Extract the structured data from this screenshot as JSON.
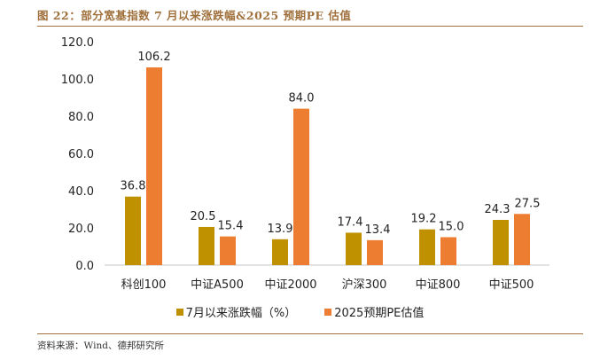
{
  "header": {
    "title": "图 22：部分宽基指数 7 月以来涨跌幅&2025 预期PE 估值"
  },
  "footer": {
    "source": "资料来源：Wind、德邦研究所"
  },
  "colors": {
    "series1": "#bf9000",
    "series2": "#ed7d31",
    "rule": "#a0703c",
    "axis": "#d9d9d9"
  },
  "chart_data": {
    "type": "bar",
    "title": "",
    "xlabel": "",
    "ylabel": "",
    "ylim": [
      0,
      120
    ],
    "yticks": [
      "0.0",
      "20.0",
      "40.0",
      "60.0",
      "80.0",
      "100.0",
      "120.0"
    ],
    "grid": false,
    "legend_position": "bottom",
    "categories": [
      "科创100",
      "中证A500",
      "中证2000",
      "沪深300",
      "中证800",
      "中证500"
    ],
    "series": [
      {
        "name": "7月以来涨跌幅（%）",
        "values": [
          36.8,
          20.5,
          13.9,
          17.4,
          19.2,
          24.3
        ],
        "labels": [
          "36.8",
          "20.5",
          "13.9",
          "17.4",
          "19.2",
          "24.3"
        ]
      },
      {
        "name": "2025预期PE估值",
        "values": [
          106.2,
          15.4,
          84.0,
          13.4,
          15.0,
          27.5
        ],
        "labels": [
          "106.2",
          "15.4",
          "84.0",
          "13.4",
          "15.0",
          "27.5"
        ]
      }
    ]
  }
}
